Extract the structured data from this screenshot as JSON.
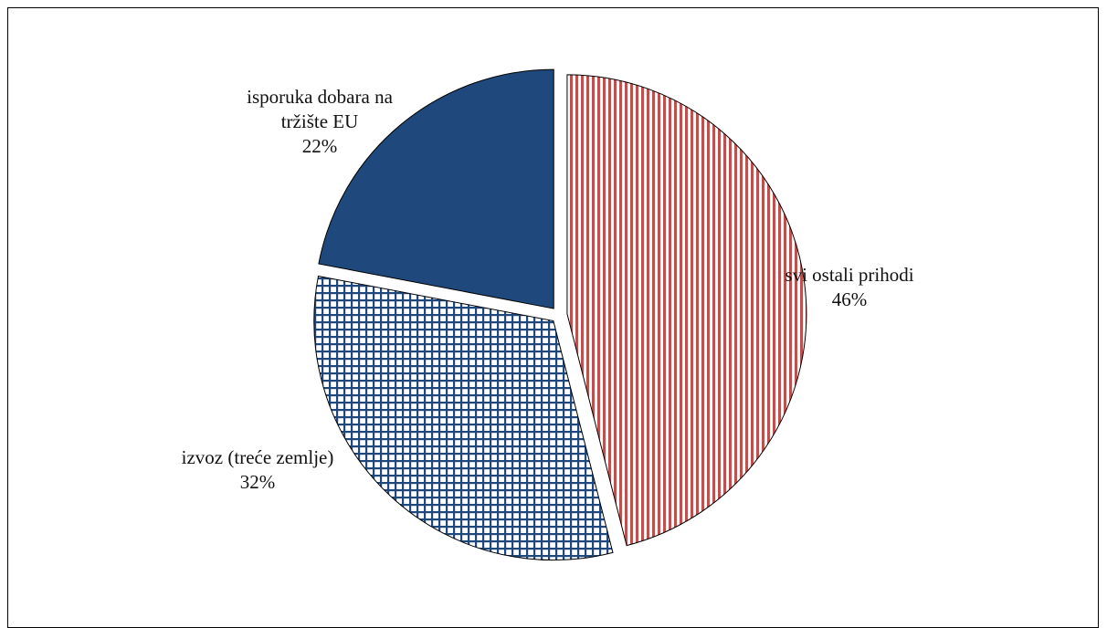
{
  "chart_data": {
    "type": "pie",
    "slices": [
      {
        "label": "svi ostali prihodi",
        "value": 46,
        "value_label": "46%",
        "pattern": "vertical-stripes",
        "color": "#c0504d"
      },
      {
        "label": "izvoz (treće zemlje)",
        "value": 32,
        "value_label": "32%",
        "pattern": "grid",
        "color": "#1f497d"
      },
      {
        "label": "isporuka dobara na tržište EU",
        "value": 22,
        "value_label": "22%",
        "pattern": "solid",
        "color": "#1f497d"
      }
    ],
    "start_angle_deg": 0,
    "direction": "clockwise",
    "exploded": true,
    "legend": "none"
  }
}
